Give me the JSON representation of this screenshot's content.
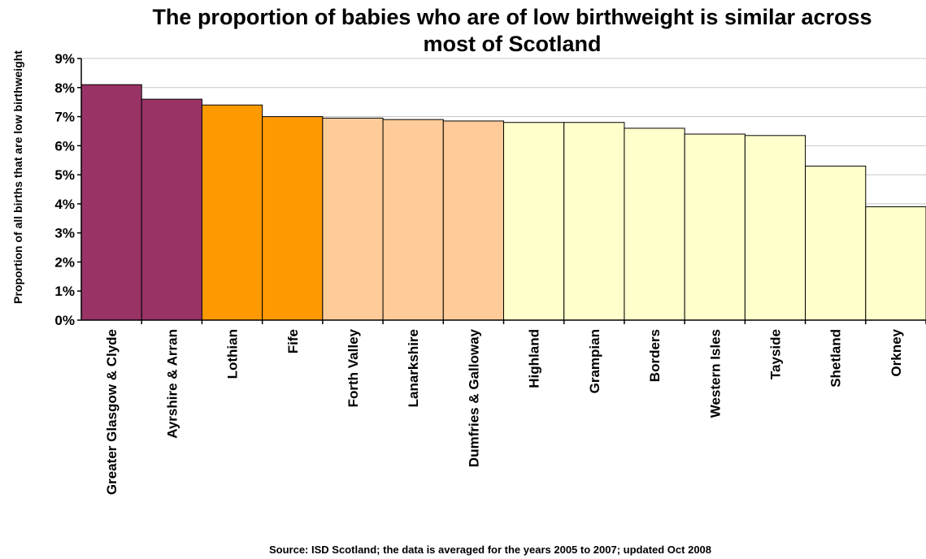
{
  "chart_data": {
    "type": "bar",
    "title_line1": "The proportion of babies who are of low birthweight is similar across",
    "title_line2": "most of Scotland",
    "ylabel": "Proportion of all births that are low birthweight",
    "xlabel": "",
    "source": "Source: ISD Scotland; the data is averaged for the years 2005 to 2007; updated Oct 2008",
    "ylim": [
      0,
      9
    ],
    "y_ticks": [
      0,
      1,
      2,
      3,
      4,
      5,
      6,
      7,
      8,
      9
    ],
    "y_tick_labels": [
      "0%",
      "1%",
      "2%",
      "3%",
      "4%",
      "5%",
      "6%",
      "7%",
      "8%",
      "9%"
    ],
    "grid": true,
    "categories": [
      "Greater Glasgow & Clyde",
      "Ayrshire & Arran",
      "Lothian",
      "Fife",
      "Forth Valley",
      "Lanarkshire",
      "Dumfries & Galloway",
      "Highland",
      "Grampian",
      "Borders",
      "Western Isles",
      "Tayside",
      "Shetland",
      "Orkney"
    ],
    "values": [
      8.1,
      7.6,
      7.4,
      7.0,
      6.95,
      6.9,
      6.85,
      6.8,
      6.8,
      6.6,
      6.4,
      6.35,
      5.3,
      3.9
    ],
    "colors": [
      "#993366",
      "#993366",
      "#ff9900",
      "#ff9900",
      "#ffcc99",
      "#ffcc99",
      "#ffcc99",
      "#ffffcc",
      "#ffffcc",
      "#ffffcc",
      "#ffffcc",
      "#ffffcc",
      "#ffffcc",
      "#ffffcc"
    ]
  }
}
